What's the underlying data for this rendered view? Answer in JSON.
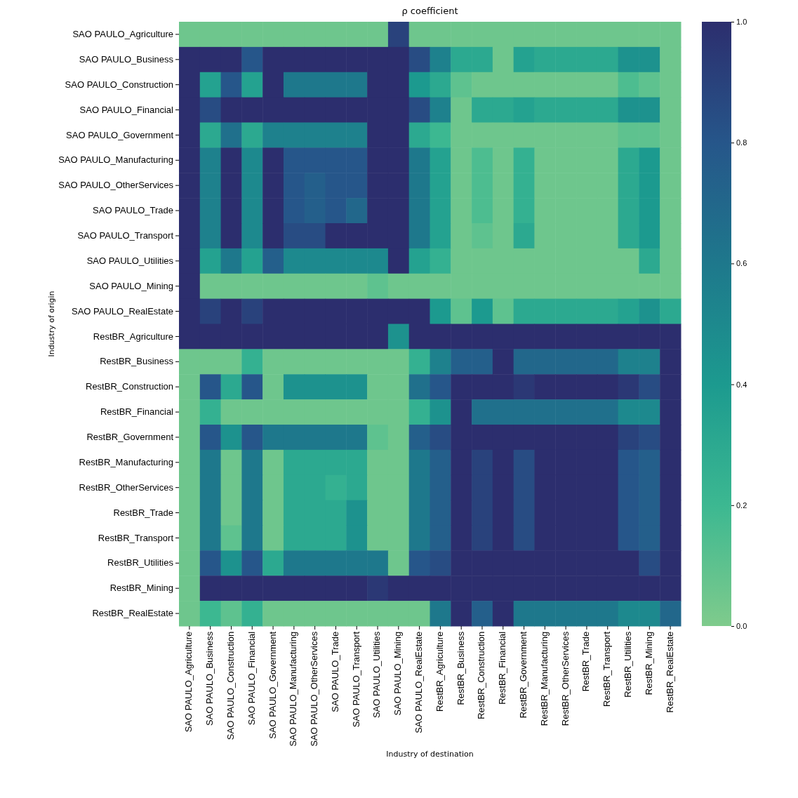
{
  "chart_data": {
    "type": "heatmap",
    "title": "ρ coefficient",
    "xlabel": "Industry of destination",
    "ylabel": "Industry of origin",
    "categories": [
      "SAO PAULO_Agriculture",
      "SAO PAULO_Business",
      "SAO PAULO_Construction",
      "SAO PAULO_Financial",
      "SAO PAULO_Government",
      "SAO PAULO_Manufacturing",
      "SAO PAULO_OtherServices",
      "SAO PAULO_Trade",
      "SAO PAULO_Transport",
      "SAO PAULO_Utilities",
      "SAO PAULO_Mining",
      "SAO PAULO_RealEstate",
      "RestBR_Agriculture",
      "RestBR_Business",
      "RestBR_Construction",
      "RestBR_Financial",
      "RestBR_Government",
      "RestBR_Manufacturing",
      "RestBR_OtherServices",
      "RestBR_Trade",
      "RestBR_Transport",
      "RestBR_Utilities",
      "RestBR_Mining",
      "RestBR_RealEstate"
    ],
    "y_categories": [
      "SAO PAULO_Agriculture",
      "SAO PAULO_Business",
      "SAO PAULO_Construction",
      "SAO PAULO_Financial",
      "SAO PAULO_Government",
      "SAO PAULO_Manufacturing",
      "SAO PAULO_OtherServices",
      "SAO PAULO_Trade",
      "SAO PAULO_Transport",
      "SAO PAULO_Utilities",
      "SAO PAULO_Mining",
      "SAO PAULO_RealEstate",
      "RestBR_Agriculture",
      "RestBR_Business",
      "RestBR_Construction",
      "RestBR_Financial",
      "RestBR_Government",
      "RestBR_Manufacturing",
      "RestBR_OtherServices",
      "RestBR_Trade",
      "RestBR_Transport",
      "RestBR_Utilities",
      "RestBR_Mining",
      "RestBR_RealEstate"
    ],
    "cells": [
      [
        0.05,
        0.05,
        0.05,
        0.05,
        0.05,
        0.05,
        0.05,
        0.05,
        0.05,
        0.05,
        0.9,
        0.05,
        0.05,
        0.05,
        0.05,
        0.05,
        0.05,
        0.05,
        0.05,
        0.05,
        0.05,
        0.05,
        0.05,
        0.05
      ],
      [
        1,
        1,
        1,
        0.8,
        1,
        1,
        1,
        1,
        1,
        1,
        1,
        0.85,
        0.55,
        0.3,
        0.3,
        0.05,
        0.35,
        0.3,
        0.3,
        0.3,
        0.3,
        0.45,
        0.45,
        0.05
      ],
      [
        1,
        0.35,
        0.8,
        0.35,
        1,
        0.6,
        0.6,
        0.6,
        0.6,
        1,
        1,
        0.4,
        0.3,
        0.1,
        0.05,
        0.05,
        0.05,
        0.05,
        0.05,
        0.05,
        0.05,
        0.15,
        0.1,
        0.05
      ],
      [
        1,
        0.85,
        1,
        1,
        1,
        1,
        1,
        1,
        1,
        1,
        1,
        0.85,
        0.55,
        0.05,
        0.3,
        0.3,
        0.35,
        0.3,
        0.3,
        0.3,
        0.3,
        0.45,
        0.45,
        0.05
      ],
      [
        1,
        0.3,
        0.65,
        0.3,
        0.55,
        0.55,
        0.55,
        0.55,
        0.55,
        1,
        1,
        0.3,
        0.2,
        0.05,
        0.05,
        0.05,
        0.05,
        0.05,
        0.05,
        0.05,
        0.05,
        0.1,
        0.1,
        0.05
      ],
      [
        1,
        0.55,
        1,
        0.5,
        1,
        0.8,
        0.8,
        0.8,
        0.8,
        1,
        1,
        0.6,
        0.35,
        0.05,
        0.15,
        0.05,
        0.25,
        0.05,
        0.05,
        0.05,
        0.05,
        0.3,
        0.4,
        0.05
      ],
      [
        1,
        0.55,
        1,
        0.5,
        1,
        0.8,
        0.75,
        0.8,
        0.8,
        1,
        1,
        0.6,
        0.35,
        0.05,
        0.15,
        0.05,
        0.25,
        0.05,
        0.05,
        0.05,
        0.05,
        0.3,
        0.4,
        0.05
      ],
      [
        1,
        0.55,
        1,
        0.5,
        1,
        0.8,
        0.75,
        0.8,
        0.7,
        1,
        1,
        0.6,
        0.35,
        0.05,
        0.15,
        0.05,
        0.25,
        0.05,
        0.05,
        0.05,
        0.05,
        0.3,
        0.4,
        0.05
      ],
      [
        1,
        0.55,
        1,
        0.5,
        1,
        0.85,
        0.85,
        1,
        1,
        1,
        1,
        0.6,
        0.35,
        0.05,
        0.1,
        0.05,
        0.3,
        0.05,
        0.05,
        0.05,
        0.05,
        0.3,
        0.4,
        0.05
      ],
      [
        1,
        0.35,
        0.6,
        0.35,
        0.75,
        0.5,
        0.5,
        0.5,
        0.5,
        0.5,
        1,
        0.35,
        0.25,
        0.05,
        0.05,
        0.05,
        0.05,
        0.05,
        0.05,
        0.05,
        0.05,
        0.05,
        0.3,
        0.05
      ],
      [
        1,
        0.05,
        0.05,
        0.05,
        0.05,
        0.05,
        0.05,
        0.05,
        0.05,
        0.1,
        0.05,
        0.05,
        0.05,
        0.05,
        0.05,
        0.05,
        0.05,
        0.05,
        0.05,
        0.05,
        0.05,
        0.05,
        0.05,
        0.05
      ],
      [
        1,
        0.9,
        1,
        0.9,
        1,
        1,
        1,
        1,
        1,
        1,
        1,
        1,
        0.4,
        0.1,
        0.4,
        0.1,
        0.3,
        0.3,
        0.3,
        0.3,
        0.3,
        0.35,
        0.45,
        0.3
      ],
      [
        1,
        1,
        1,
        1,
        1,
        1,
        1,
        1,
        1,
        1,
        0.45,
        1,
        1,
        1,
        1,
        1,
        1,
        1,
        1,
        1,
        1,
        1,
        1,
        1
      ],
      [
        0.05,
        0.05,
        0.05,
        0.25,
        0.05,
        0.05,
        0.05,
        0.05,
        0.05,
        0.05,
        0.05,
        0.25,
        0.55,
        0.75,
        0.75,
        1,
        0.7,
        0.7,
        0.7,
        0.7,
        0.7,
        0.55,
        0.55,
        1
      ],
      [
        0.05,
        0.8,
        0.3,
        0.8,
        0.05,
        0.45,
        0.45,
        0.45,
        0.45,
        0.05,
        0.05,
        0.65,
        0.8,
        1,
        1,
        1,
        0.95,
        1,
        1,
        1,
        1,
        0.95,
        0.85,
        1
      ],
      [
        0.05,
        0.25,
        0.05,
        0.05,
        0.05,
        0.05,
        0.05,
        0.05,
        0.05,
        0.05,
        0.05,
        0.25,
        0.45,
        1,
        0.65,
        0.65,
        0.65,
        0.65,
        0.65,
        0.65,
        0.65,
        0.5,
        0.5,
        1
      ],
      [
        0.05,
        0.8,
        0.45,
        0.8,
        0.6,
        0.6,
        0.6,
        0.6,
        0.6,
        0.1,
        0.05,
        0.75,
        0.85,
        1,
        1,
        1,
        1,
        1,
        1,
        1,
        1,
        0.9,
        0.85,
        1
      ],
      [
        0.05,
        0.6,
        0.05,
        0.6,
        0.05,
        0.3,
        0.3,
        0.3,
        0.3,
        0.05,
        0.05,
        0.6,
        0.75,
        1,
        0.9,
        1,
        0.85,
        1,
        1,
        1,
        1,
        0.8,
        0.75,
        1
      ],
      [
        0.05,
        0.6,
        0.05,
        0.6,
        0.05,
        0.3,
        0.3,
        0.25,
        0.3,
        0.05,
        0.05,
        0.6,
        0.75,
        1,
        0.9,
        1,
        0.85,
        1,
        1,
        1,
        1,
        0.8,
        0.75,
        1
      ],
      [
        0.05,
        0.6,
        0.05,
        0.6,
        0.05,
        0.3,
        0.3,
        0.3,
        0.45,
        0.05,
        0.05,
        0.6,
        0.75,
        1,
        0.9,
        1,
        0.85,
        1,
        1,
        1,
        1,
        0.8,
        0.75,
        1
      ],
      [
        0.05,
        0.6,
        0.1,
        0.6,
        0.05,
        0.3,
        0.3,
        0.3,
        0.45,
        0.05,
        0.05,
        0.6,
        0.75,
        1,
        0.9,
        1,
        0.85,
        1,
        1,
        1,
        1,
        0.8,
        0.75,
        1
      ],
      [
        0.05,
        0.8,
        0.45,
        0.8,
        0.3,
        0.6,
        0.6,
        0.6,
        0.6,
        0.6,
        0.05,
        0.8,
        0.85,
        1,
        1,
        1,
        1,
        1,
        1,
        1,
        1,
        1,
        0.85,
        1
      ],
      [
        0.05,
        1,
        1,
        1,
        1,
        1,
        1,
        1,
        1,
        0.95,
        1,
        1,
        1,
        1,
        1,
        1,
        1,
        1,
        1,
        1,
        1,
        1,
        1,
        1
      ],
      [
        0.05,
        0.2,
        0.1,
        0.25,
        0.05,
        0.05,
        0.05,
        0.05,
        0.05,
        0.05,
        0.05,
        0.05,
        0.6,
        1,
        0.75,
        1,
        0.6,
        0.6,
        0.6,
        0.6,
        0.6,
        0.5,
        0.5,
        0.7
      ]
    ],
    "clim": [
      0,
      1
    ],
    "cticks": [
      {
        "value": 0,
        "label": "0.0"
      },
      {
        "value": 0.2,
        "label": "0.2"
      },
      {
        "value": 0.4,
        "label": "0.4"
      },
      {
        "value": 0.6,
        "label": "0.6"
      },
      {
        "value": 0.8,
        "label": "0.8"
      },
      {
        "value": 1,
        "label": "1.0"
      }
    ]
  }
}
